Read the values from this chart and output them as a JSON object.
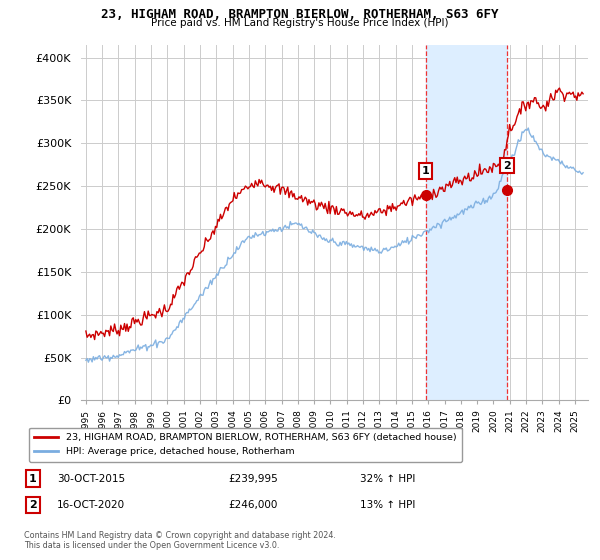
{
  "title1": "23, HIGHAM ROAD, BRAMPTON BIERLOW, ROTHERHAM, S63 6FY",
  "title2": "Price paid vs. HM Land Registry's House Price Index (HPI)",
  "yticks": [
    0,
    50000,
    100000,
    150000,
    200000,
    250000,
    300000,
    350000,
    400000
  ],
  "ytick_labels": [
    "£0",
    "£50K",
    "£100K",
    "£150K",
    "£200K",
    "£250K",
    "£300K",
    "£350K",
    "£400K"
  ],
  "legend1": "23, HIGHAM ROAD, BRAMPTON BIERLOW, ROTHERHAM, S63 6FY (detached house)",
  "legend2": "HPI: Average price, detached house, Rotherham",
  "sale1_date": "30-OCT-2015",
  "sale1_price": 239995,
  "sale1_hpi": "32% ↑ HPI",
  "sale1_label": "1",
  "sale2_date": "16-OCT-2020",
  "sale2_price": 246000,
  "sale2_hpi": "13% ↑ HPI",
  "sale2_label": "2",
  "footnote": "Contains HM Land Registry data © Crown copyright and database right 2024.\nThis data is licensed under the Open Government Licence v3.0.",
  "red_color": "#cc0000",
  "blue_color": "#7aade0",
  "vline_color": "#ee3333",
  "background_color": "#ffffff",
  "grid_color": "#cccccc",
  "span_color": "#ddeeff",
  "sale1_x": 2015.833,
  "sale2_x": 2020.833,
  "ymin": 0,
  "ymax": 415000,
  "xmin": 1994.7,
  "xmax": 2025.8
}
